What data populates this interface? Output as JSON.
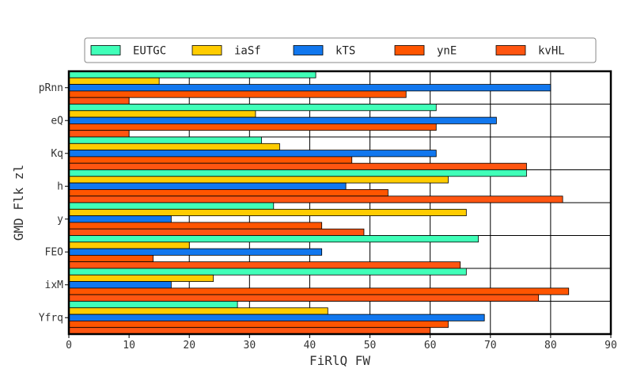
{
  "chart_data": {
    "type": "bar",
    "orientation": "horizontal",
    "title": "",
    "xlabel": "FiRlQ FW",
    "ylabel": "GMD Flk zl",
    "xlim": [
      0,
      90
    ],
    "xticks": [
      0,
      10,
      20,
      30,
      40,
      50,
      60,
      70,
      80,
      90
    ],
    "grid": true,
    "legend_position": "top-center",
    "categories": [
      "pRnn",
      "eQ",
      "Kq",
      "h",
      "y",
      "FEO",
      "ixM",
      "Yfrq"
    ],
    "series": [
      {
        "name": "EUTGC",
        "color": "#40ffb8",
        "values": [
          41,
          61,
          32,
          76,
          34,
          68,
          66,
          28
        ]
      },
      {
        "name": "iaSf",
        "color": "#ffcc00",
        "values": [
          15,
          31,
          35,
          63,
          66,
          20,
          24,
          43
        ]
      },
      {
        "name": "kTS",
        "color": "#1177ee",
        "values": [
          80,
          71,
          61,
          46,
          17,
          42,
          17,
          69
        ]
      },
      {
        "name": "ynE",
        "color": "#ff5500",
        "values": [
          56,
          61,
          47,
          53,
          42,
          14,
          83,
          63
        ]
      },
      {
        "name": "kvHL",
        "color": "#ff5511",
        "values": [
          10,
          10,
          76,
          82,
          49,
          65,
          78,
          60
        ]
      }
    ]
  }
}
